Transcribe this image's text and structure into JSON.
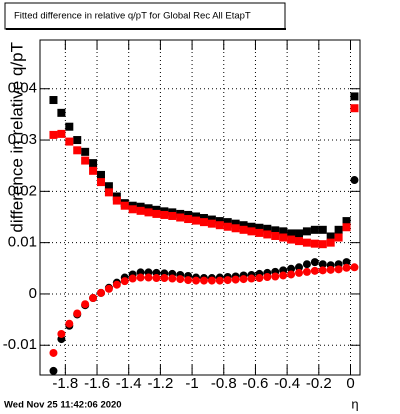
{
  "chart_data": {
    "type": "scatter",
    "title": "Fitted difference in relative q/pT for Global Rec All EtapT",
    "y_label": "difference in relative q/pT",
    "x_label": "η",
    "timestamp": "Wed Nov 25 11:42:06 2020",
    "grid": true,
    "xlim": [
      -1.96,
      0.06
    ],
    "ylim": [
      -0.0158,
      0.0495
    ],
    "xticks": [
      -1.8,
      -1.6,
      -1.4,
      -1.2,
      -1,
      -0.8,
      -0.6,
      -0.4,
      -0.2,
      0
    ],
    "yticks": [
      -0.01,
      0,
      0.01,
      0.02,
      0.03,
      0.04
    ],
    "x": [
      -1.875,
      -1.825,
      -1.775,
      -1.725,
      -1.675,
      -1.625,
      -1.575,
      -1.525,
      -1.475,
      -1.425,
      -1.375,
      -1.325,
      -1.275,
      -1.225,
      -1.175,
      -1.125,
      -1.075,
      -1.025,
      -0.975,
      -0.925,
      -0.875,
      -0.825,
      -0.775,
      -0.725,
      -0.675,
      -0.625,
      -0.575,
      -0.525,
      -0.475,
      -0.425,
      -0.375,
      -0.325,
      -0.275,
      -0.225,
      -0.175,
      -0.125,
      -0.075,
      -0.025,
      0.025
    ],
    "series": [
      {
        "color": "#000000",
        "marker": "square",
        "values": [
          0.0378,
          0.0353,
          0.0326,
          0.03,
          0.0277,
          0.0255,
          0.0232,
          0.021,
          0.019,
          0.0177,
          0.0172,
          0.017,
          0.0167,
          0.0164,
          0.0161,
          0.0159,
          0.0156,
          0.0154,
          0.0151,
          0.0148,
          0.0145,
          0.0142,
          0.014,
          0.0137,
          0.0134,
          0.0131,
          0.0129,
          0.0127,
          0.0124,
          0.0122,
          0.0118,
          0.0118,
          0.0122,
          0.0125,
          0.0125,
          0.0112,
          0.0125,
          0.0142,
          0.0385
        ]
      },
      {
        "color": "#ff0000",
        "marker": "square",
        "values": [
          0.031,
          0.0312,
          0.0297,
          0.028,
          0.026,
          0.024,
          0.0218,
          0.0198,
          0.0182,
          0.0172,
          0.0165,
          0.0162,
          0.0159,
          0.0156,
          0.0154,
          0.0152,
          0.0149,
          0.0146,
          0.0143,
          0.014,
          0.0137,
          0.0134,
          0.0131,
          0.0128,
          0.0125,
          0.0122,
          0.0119,
          0.0116,
          0.0113,
          0.011,
          0.0106,
          0.0103,
          0.01,
          0.0098,
          0.0097,
          0.01,
          0.011,
          0.013,
          0.0362
        ]
      },
      {
        "color": "#000000",
        "marker": "circle",
        "values": [
          -0.015,
          -0.0088,
          -0.0062,
          -0.004,
          -0.0022,
          -0.0008,
          0.0002,
          0.0012,
          0.0022,
          0.0032,
          0.0038,
          0.0042,
          0.0042,
          0.0041,
          0.004,
          0.0039,
          0.0037,
          0.0035,
          0.0032,
          0.0031,
          0.0031,
          0.0032,
          0.0033,
          0.0034,
          0.0036,
          0.0037,
          0.0039,
          0.0041,
          0.0043,
          0.0046,
          0.0049,
          0.0052,
          0.0058,
          0.0062,
          0.0058,
          0.0056,
          0.0058,
          0.0062,
          0.0222
        ]
      },
      {
        "color": "#ff0000",
        "marker": "circle",
        "values": [
          -0.0115,
          -0.0078,
          -0.0058,
          -0.0038,
          -0.002,
          -0.0008,
          0.0002,
          0.001,
          0.0018,
          0.0025,
          0.003,
          0.0032,
          0.0032,
          0.0031,
          0.0031,
          0.003,
          0.0029,
          0.0027,
          0.0026,
          0.0026,
          0.0026,
          0.0026,
          0.0027,
          0.0028,
          0.0029,
          0.003,
          0.0031,
          0.0033,
          0.0034,
          0.0036,
          0.0038,
          0.0041,
          0.0043,
          0.0045,
          0.0046,
          0.0047,
          0.0048,
          0.0051,
          0.0052
        ]
      }
    ]
  }
}
